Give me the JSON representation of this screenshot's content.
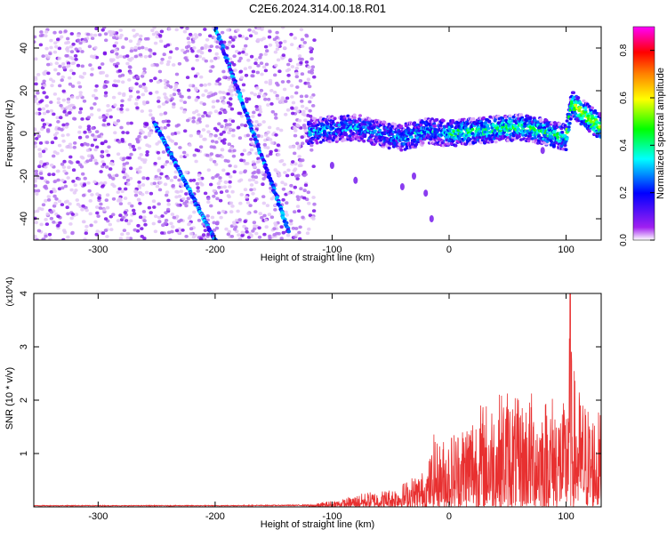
{
  "title": "C2E6.2024.314.00.18.R01",
  "chart_data": [
    {
      "type": "heatmap",
      "xlabel": "Height of straight line (km)",
      "ylabel": "Frequency (Hz)",
      "xlim": [
        -355,
        130
      ],
      "ylim": [
        -50,
        50
      ],
      "xticks": [
        -300,
        -200,
        -100,
        0,
        100
      ],
      "yticks": [
        -40,
        -20,
        0,
        20,
        40
      ],
      "colorbar": {
        "label": "Normalized spectral amplitude",
        "range": [
          0.0,
          0.9
        ],
        "ticks": [
          0.0,
          0.2,
          0.4,
          0.6,
          0.8
        ],
        "colormap": [
          "#ffffff",
          "#a020f0",
          "#0000ff",
          "#00ffff",
          "#00ff00",
          "#ffff00",
          "#ff8000",
          "#ff0000",
          "#ff00ff"
        ]
      },
      "diagonal_tracks": [
        {
          "x": [
            -252,
            -200
          ],
          "y": [
            5,
            -50
          ]
        },
        {
          "x": [
            -200,
            -137
          ],
          "y": [
            50,
            -46
          ]
        }
      ],
      "ridge": {
        "x": [
          -120,
          -100,
          -80,
          -60,
          -40,
          -20,
          0,
          20,
          40,
          60,
          80,
          100,
          105,
          120,
          130
        ],
        "y": [
          1,
          2,
          3,
          0,
          -2,
          1,
          0,
          1,
          2,
          3,
          1,
          -2,
          14,
          7,
          3
        ]
      }
    },
    {
      "type": "line",
      "xlabel": "Height of straight line (km)",
      "ylabel": "SNR (10 * v/v)",
      "yunit_multiplier": "(x10^4)",
      "xlim": [
        -355,
        130
      ],
      "ylim": [
        0,
        4
      ],
      "xticks": [
        -300,
        -200,
        -100,
        0,
        100
      ],
      "yticks": [
        1,
        2,
        3,
        4
      ],
      "series": [
        {
          "color": "#e83030",
          "x": [
            -355,
            -300,
            -200,
            -120,
            -100,
            -90,
            -80,
            -70,
            -60,
            -50,
            -40,
            -30,
            -20,
            -15,
            -12,
            -10,
            0,
            10,
            20,
            30,
            40,
            50,
            60,
            70,
            80,
            90,
            100,
            102,
            104,
            110,
            120,
            130
          ],
          "y": [
            0.03,
            0.03,
            0.03,
            0.04,
            0.12,
            0.15,
            0.22,
            0.28,
            0.3,
            0.35,
            0.45,
            0.6,
            0.7,
            1.1,
            1.5,
            1.2,
            1.4,
            1.6,
            1.9,
            2.0,
            2.1,
            2.3,
            2.0,
            2.2,
            2.1,
            2.2,
            1.9,
            4.0,
            2.9,
            2.3,
            1.9,
            1.8
          ]
        }
      ]
    }
  ]
}
